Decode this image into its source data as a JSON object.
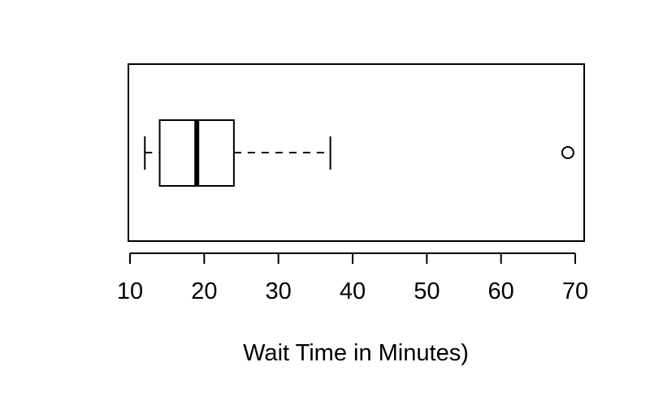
{
  "chart_data": {
    "type": "boxplot",
    "orientation": "horizontal",
    "title": "",
    "xlabel": "Wait Time in Minutes)",
    "ylabel": "",
    "xticks": [
      10,
      20,
      30,
      40,
      50,
      60,
      70
    ],
    "xtick_labels": [
      "10",
      "20",
      "30",
      "40",
      "50",
      "60",
      "70"
    ],
    "xlim": [
      10,
      70
    ],
    "grid": false,
    "box": {
      "whisker_low": 12,
      "q1": 14,
      "median": 19,
      "q3": 24,
      "whisker_high": 37,
      "outliers": [
        69
      ]
    },
    "colors": {
      "stroke": "#000000",
      "background": "#ffffff",
      "outlier_fill": "#ffffff"
    }
  }
}
